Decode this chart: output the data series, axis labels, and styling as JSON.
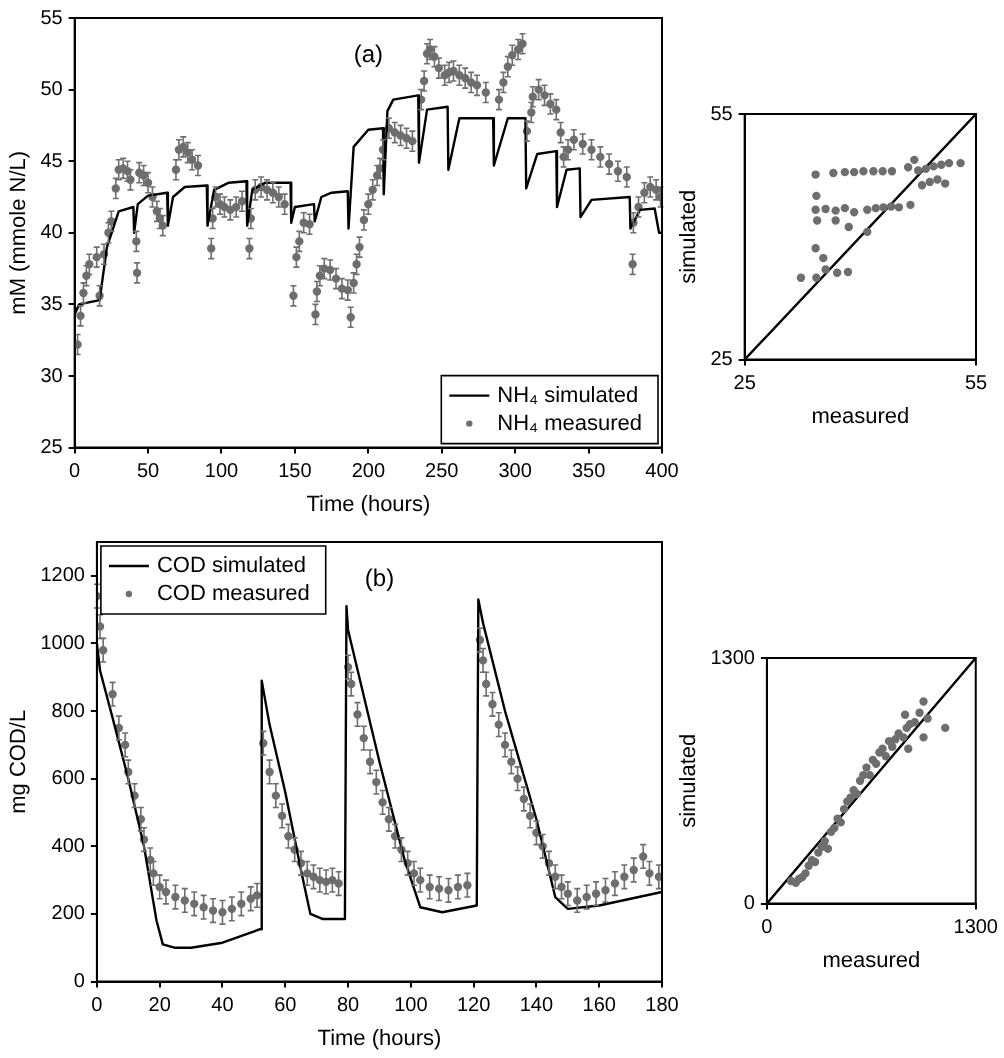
{
  "chart_data": [
    {
      "type": "line",
      "xlabel": "Time (hours)",
      "ylabel": "mM (mmole N/L)",
      "annotations": [
        "(a)"
      ],
      "xlim": [
        0,
        400
      ],
      "xticks": [
        0,
        50,
        100,
        150,
        200,
        250,
        300,
        350,
        400
      ],
      "ylim": [
        25,
        55
      ],
      "yticks": [
        25,
        30,
        35,
        40,
        45,
        50,
        55
      ],
      "grid": false,
      "legend": "bottom right",
      "series": [
        {
          "name": "NH₄ simulated",
          "color": "#000000",
          "x": [
            0,
            3,
            17,
            22,
            30,
            40,
            40.5,
            43,
            50,
            63,
            63.5,
            67,
            75,
            90,
            90.5,
            95,
            105,
            117,
            117.5,
            121,
            130,
            147,
            147.5,
            150,
            163,
            163.5,
            168,
            175,
            186,
            186.5,
            190,
            200,
            210,
            210.5,
            213,
            217,
            234,
            234.5,
            240,
            254,
            254.5,
            262,
            285,
            285.5,
            295,
            307,
            307.5,
            315,
            328,
            328.5,
            335,
            344,
            344.5,
            352,
            378,
            378.5,
            385,
            395,
            398,
            400
          ],
          "values": [
            34.3,
            35.0,
            35.3,
            39.0,
            41.5,
            41.8,
            40.0,
            42.0,
            42.6,
            42.8,
            40.5,
            42.5,
            43.2,
            43.3,
            40.5,
            43.0,
            43.5,
            43.6,
            40.5,
            43.0,
            43.5,
            43.5,
            40.7,
            41.8,
            42.0,
            40.8,
            42.5,
            42.8,
            42.9,
            40.3,
            46.0,
            47.2,
            47.3,
            42.7,
            48.5,
            49.3,
            49.6,
            44.9,
            48.6,
            48.8,
            44.4,
            48.0,
            48.0,
            44.7,
            48.0,
            48.0,
            43.1,
            45.5,
            45.7,
            41.8,
            44.4,
            44.5,
            41.1,
            42.3,
            42.5,
            40.3,
            41.6,
            41.7,
            40.0,
            40.0
          ]
        },
        {
          "name": "NH₄ measured",
          "type": "scatter",
          "marker": "circle",
          "color": "#6e6e6e",
          "x": [
            2,
            4,
            6,
            8,
            10,
            15,
            17,
            20,
            23,
            25,
            28,
            30,
            33,
            36,
            38,
            42,
            42.5,
            44,
            47,
            50,
            53,
            56,
            58,
            60,
            69,
            71,
            74,
            77,
            80,
            84,
            93,
            94,
            96,
            99,
            102,
            106,
            110,
            114,
            119,
            120,
            123,
            127,
            131,
            135,
            139,
            143,
            149,
            151,
            153,
            156,
            160,
            164,
            165,
            167,
            170,
            174,
            178,
            182,
            186,
            188,
            190,
            192,
            194,
            197,
            200,
            203,
            206,
            208,
            210,
            214,
            218,
            222,
            226,
            230,
            236,
            238,
            240,
            242,
            245,
            248,
            252,
            255,
            258,
            262,
            266,
            270,
            274,
            280,
            289,
            292,
            295,
            298,
            302,
            305,
            308,
            311,
            312,
            316,
            320,
            324,
            328,
            331,
            333,
            336,
            340,
            346,
            352,
            358,
            364,
            370,
            376,
            380,
            380.5,
            384,
            388,
            392,
            396,
            399
          ],
          "values": [
            32.2,
            34.2,
            35.8,
            37.0,
            37.8,
            38.3,
            35.6,
            38.5,
            40.0,
            40.8,
            43.1,
            44.4,
            44.5,
            44.3,
            43.7,
            39.4,
            37.2,
            44.2,
            44.0,
            43.5,
            42.5,
            41.5,
            41.0,
            40.5,
            44.4,
            45.8,
            46.0,
            45.6,
            45.1,
            44.7,
            38.9,
            41.0,
            42.5,
            42.0,
            41.8,
            41.6,
            41.8,
            42.2,
            38.9,
            41.0,
            43.0,
            43.2,
            43.0,
            42.8,
            42.5,
            42.0,
            35.6,
            38.3,
            39.4,
            40.7,
            40.6,
            34.3,
            35.9,
            37.0,
            37.5,
            37.4,
            36.8,
            36.1,
            36.0,
            34.1,
            36.5,
            37.8,
            39.0,
            40.9,
            42.0,
            43.0,
            44.0,
            44.5,
            45.8,
            47.3,
            47.0,
            46.8,
            46.6,
            46.4,
            49.3,
            50.6,
            52.5,
            52.8,
            52.3,
            51.5,
            51.0,
            51.2,
            51.3,
            51.0,
            50.8,
            50.5,
            50.3,
            49.8,
            49.3,
            50.5,
            51.6,
            52.4,
            52.8,
            53.2,
            47.1,
            48.4,
            49.5,
            50.0,
            49.6,
            49.0,
            48.6,
            47.0,
            45.3,
            45.8,
            46.5,
            46.2,
            45.8,
            45.3,
            44.8,
            44.3,
            43.9,
            37.8,
            40.7,
            41.8,
            42.8,
            43.2,
            43.0,
            42.5
          ],
          "errors": [
            0.7,
            0.7,
            0.7,
            0.7,
            0.7,
            0.7,
            0.7,
            0.7,
            0.7,
            0.7,
            0.7,
            0.7,
            0.7,
            0.7,
            0.7,
            0.7,
            0.7,
            0.7,
            0.7,
            0.7,
            0.7,
            0.7,
            0.7,
            0.7,
            0.7,
            0.7,
            0.7,
            0.7,
            0.7,
            0.7,
            0.7,
            0.7,
            0.7,
            0.7,
            0.7,
            0.7,
            0.7,
            0.7,
            0.7,
            0.7,
            0.7,
            0.7,
            0.7,
            0.7,
            0.7,
            0.7,
            0.7,
            0.7,
            0.7,
            0.7,
            0.7,
            0.7,
            0.7,
            0.7,
            0.7,
            0.7,
            0.7,
            0.7,
            0.7,
            0.7,
            0.7,
            0.7,
            0.7,
            0.7,
            0.7,
            0.7,
            0.7,
            0.7,
            0.7,
            0.7,
            0.7,
            0.7,
            0.7,
            0.7,
            0.7,
            0.7,
            0.7,
            0.7,
            0.7,
            0.7,
            0.7,
            0.7,
            0.7,
            0.7,
            0.7,
            0.7,
            0.7,
            0.7,
            0.7,
            0.7,
            0.7,
            0.7,
            0.7,
            0.7,
            0.7,
            0.7,
            0.7,
            0.7,
            0.7,
            0.7,
            0.7,
            0.7,
            0.7,
            0.7,
            0.7,
            0.7,
            0.7,
            0.7,
            0.7,
            0.7,
            0.7,
            0.7,
            0.7,
            0.7,
            0.7,
            0.7,
            0.7,
            0.7
          ]
        }
      ]
    },
    {
      "type": "scatter",
      "xlabel": "measured",
      "ylabel": "simulated",
      "xlim": [
        25,
        55
      ],
      "xticks": [
        25,
        55
      ],
      "ylim": [
        25,
        55
      ],
      "yticks": [
        25,
        55
      ],
      "grid": false,
      "series": [
        {
          "marker": "circle",
          "color": "#6e6e6e",
          "x": [
            34.3,
            34.4,
            32.3,
            34.3,
            35.2,
            34.2,
            36.5,
            38.0,
            39.2,
            40.4,
            41.7,
            42.9,
            44.1,
            46.2,
            47.0,
            34.2,
            35.5,
            36.8,
            38.0,
            39.2,
            40.9,
            42.0,
            43.0,
            44.0,
            45.0,
            46.5,
            47.5,
            48.5,
            49.5,
            50.5,
            51.5,
            53.0,
            48.0,
            49.0,
            50.0,
            51.0,
            36.8,
            38.5,
            40.9,
            34.2,
            35.5,
            37.0,
            38.4
          ],
          "values": [
            45.0,
            42.0,
            35.0,
            35.0,
            37.4,
            47.6,
            47.8,
            47.9,
            47.9,
            48.0,
            48.0,
            48.0,
            48.0,
            48.5,
            49.4,
            43.3,
            43.4,
            43.2,
            43.5,
            43.0,
            43.3,
            43.5,
            43.6,
            43.7,
            43.6,
            43.9,
            48.1,
            48.3,
            48.6,
            48.8,
            49.0,
            49.0,
            46.3,
            46.7,
            47.0,
            46.5,
            42.0,
            41.2,
            40.6,
            38.6,
            36.0,
            35.6,
            35.7
          ]
        },
        {
          "type": "line",
          "color": "#000000",
          "x": [
            25,
            55
          ],
          "values": [
            25,
            55
          ]
        }
      ]
    },
    {
      "type": "line",
      "xlabel": "Time (hours)",
      "ylabel": "mg COD/L",
      "annotations": [
        "(b)"
      ],
      "xlim": [
        0,
        180
      ],
      "xticks": [
        0,
        20,
        40,
        60,
        80,
        100,
        120,
        140,
        160,
        180
      ],
      "ylim": [
        0,
        1300
      ],
      "yticks": [
        0,
        200,
        400,
        600,
        800,
        1000,
        1200
      ],
      "grid": false,
      "legend": "top left",
      "series": [
        {
          "name": "COD simulated",
          "color": "#000000",
          "x": [
            0,
            1,
            5,
            10,
            15,
            19,
            21,
            25,
            30,
            40,
            52,
            52.5,
            55,
            60,
            65,
            68,
            72,
            79,
            79.5,
            80,
            90,
            98,
            103,
            110,
            121,
            121.5,
            123,
            130,
            140,
            146,
            150,
            160,
            170,
            180
          ],
          "values": [
            1000,
            920,
            780,
            600,
            400,
            180,
            110,
            100,
            100,
            115,
            155,
            890,
            760,
            560,
            330,
            200,
            185,
            185,
            1110,
            1040,
            650,
            360,
            220,
            205,
            225,
            1130,
            1060,
            800,
            480,
            250,
            215,
            225,
            245,
            265
          ]
        },
        {
          "name": "COD measured",
          "type": "scatter",
          "marker": "circle",
          "color": "#6e6e6e",
          "x": [
            0,
            1,
            2,
            5,
            7,
            9,
            10,
            12,
            14,
            15,
            17,
            18,
            20,
            22,
            25,
            28,
            31,
            34,
            37,
            40,
            43,
            46,
            49,
            51,
            53,
            55,
            57,
            59,
            61,
            63,
            65,
            67,
            69,
            71,
            73,
            75,
            77,
            80,
            81,
            83,
            85,
            87,
            89,
            91,
            93,
            95,
            97,
            99,
            101,
            103,
            106,
            109,
            112,
            115,
            118,
            122,
            123,
            124,
            126,
            128,
            130,
            132,
            134,
            136,
            138,
            140,
            142,
            144,
            146,
            148,
            150,
            153,
            156,
            159,
            162,
            165,
            168,
            171,
            174,
            176,
            179
          ],
          "values": [
            1140,
            1050,
            980,
            850,
            750,
            700,
            620,
            550,
            480,
            420,
            360,
            320,
            280,
            265,
            250,
            240,
            230,
            220,
            210,
            205,
            215,
            230,
            245,
            255,
            705,
            620,
            550,
            490,
            430,
            390,
            350,
            320,
            310,
            300,
            295,
            300,
            290,
            930,
            880,
            790,
            720,
            650,
            590,
            530,
            480,
            430,
            390,
            350,
            320,
            300,
            280,
            275,
            270,
            280,
            285,
            1010,
            950,
            880,
            820,
            760,
            700,
            650,
            600,
            540,
            490,
            440,
            400,
            350,
            310,
            280,
            260,
            240,
            250,
            260,
            270,
            290,
            310,
            330,
            370,
            320,
            310
          ],
          "errors": [
            35,
            35,
            35,
            35,
            35,
            35,
            35,
            35,
            35,
            35,
            35,
            35,
            35,
            35,
            35,
            35,
            35,
            35,
            35,
            35,
            35,
            35,
            35,
            35,
            35,
            35,
            35,
            35,
            35,
            35,
            35,
            35,
            35,
            35,
            35,
            35,
            35,
            35,
            35,
            35,
            35,
            35,
            35,
            35,
            35,
            35,
            35,
            35,
            35,
            35,
            35,
            35,
            35,
            35,
            35,
            35,
            35,
            35,
            35,
            35,
            35,
            35,
            35,
            35,
            35,
            35,
            35,
            35,
            35,
            35,
            35,
            35,
            35,
            35,
            35,
            35,
            35,
            35,
            35,
            35,
            35
          ]
        }
      ]
    },
    {
      "type": "scatter",
      "xlabel": "measured",
      "ylabel": "simulated",
      "xlim": [
        0,
        1300
      ],
      "xticks": [
        0,
        1300
      ],
      "ylim": [
        0,
        1300
      ],
      "yticks": [
        0,
        1300
      ],
      "grid": false,
      "series": [
        {
          "marker": "circle",
          "color": "#6e6e6e",
          "x": [
            150,
            180,
            200,
            220,
            240,
            260,
            280,
            300,
            320,
            340,
            360,
            380,
            400,
            420,
            440,
            460,
            480,
            500,
            520,
            540,
            560,
            580,
            600,
            620,
            640,
            660,
            680,
            700,
            720,
            740,
            760,
            780,
            800,
            820,
            850,
            870,
            890,
            920,
            950,
            975,
            1000,
            1110,
            880,
            975,
            860
          ],
          "values": [
            120,
            110,
            130,
            140,
            160,
            200,
            230,
            220,
            270,
            300,
            330,
            290,
            380,
            400,
            450,
            430,
            500,
            540,
            560,
            600,
            580,
            650,
            680,
            720,
            680,
            760,
            740,
            800,
            820,
            780,
            860,
            830,
            870,
            900,
            880,
            930,
            950,
            960,
            1010,
            1070,
            980,
            930,
            820,
            880,
            1000
          ]
        },
        {
          "type": "line",
          "color": "#000000",
          "x": [
            0,
            1300
          ],
          "values": [
            0,
            1300
          ]
        }
      ]
    }
  ]
}
